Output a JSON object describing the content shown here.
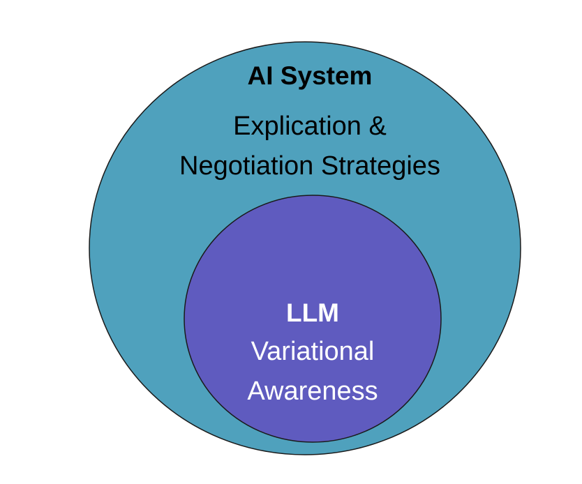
{
  "diagram": {
    "outer": {
      "title": "AI System",
      "lines": [
        "Explication &",
        "Negotiation Strategies"
      ],
      "fill": "#4fa1bd",
      "text_color": "#000000"
    },
    "inner": {
      "title": "LLM",
      "lines": [
        "Variational",
        "Awareness"
      ],
      "fill": "#5f5bbf",
      "text_color": "#ffffff"
    },
    "stroke": "#1a1a1a"
  }
}
